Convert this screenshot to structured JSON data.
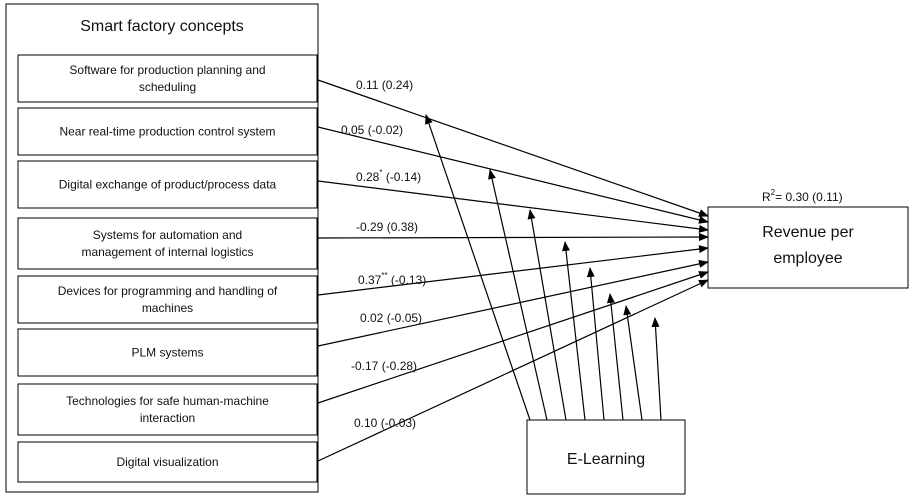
{
  "group_title": "Smart factory concepts",
  "concepts": [
    {
      "lines": [
        "Software for production planning and",
        "scheduling"
      ],
      "main": "0.11",
      "star": "",
      "rest": " (0.24)"
    },
    {
      "lines": [
        "Near real-time production control system"
      ],
      "main": "0.05",
      "star": "",
      "rest": " (-0.02)"
    },
    {
      "lines": [
        "Digital exchange of product/process data"
      ],
      "main": "0.28",
      "star": "*",
      "rest": " (-0.14)"
    },
    {
      "lines": [
        "Systems for automation and",
        "management of internal logistics"
      ],
      "main": "-0.29",
      "star": "",
      "rest": " (0.38)"
    },
    {
      "lines": [
        "Devices for programming and handling of",
        "machines"
      ],
      "main": "0.37",
      "star": "**",
      "rest": " (-0.13)"
    },
    {
      "lines": [
        "PLM systems"
      ],
      "main": "0.02",
      "star": "",
      "rest": " (-0.05)"
    },
    {
      "lines": [
        "Technologies for safe human-machine",
        "interaction"
      ],
      "main": "-0.17",
      "star": "",
      "rest": " (-0.28)"
    },
    {
      "lines": [
        "Digital visualization"
      ],
      "main": "0.10",
      "star": "",
      "rest": " (-0.03)"
    }
  ],
  "outcome": {
    "lines": [
      "Revenue per",
      "employee"
    ]
  },
  "r_squared": {
    "prefix": "R",
    "sup": "2",
    "value": "= 0.30 (0.11)"
  },
  "moderator": {
    "label": "E-Learning"
  },
  "colors": {
    "stroke": "#000000",
    "text": "#111111",
    "background": "#ffffff"
  }
}
